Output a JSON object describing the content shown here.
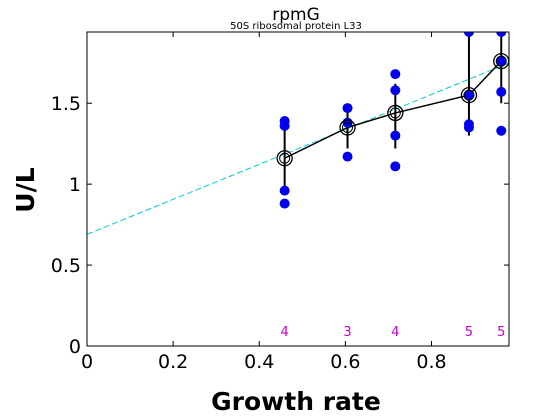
{
  "chart_data": {
    "type": "scatter",
    "title": "rpmG",
    "subtitle": "50S ribosomal protein L33",
    "xlabel": "Growth rate",
    "ylabel": "U/L",
    "xlim": [
      0,
      0.98
    ],
    "ylim": [
      0,
      1.94
    ],
    "xticks": [
      0,
      0.2,
      0.4,
      0.6,
      0.8
    ],
    "xtick_labels": [
      "0",
      "0.2",
      "0.4",
      "0.6",
      "0.8"
    ],
    "yticks": [
      0,
      0.5,
      1,
      1.5
    ],
    "ytick_labels": [
      "0",
      "0.5",
      "1",
      "1.5"
    ],
    "grid": false,
    "colors": {
      "points": "#0000ee",
      "mean": "#000000",
      "fit": "#00cccc",
      "counts": "#cc00cc"
    },
    "fit_line": {
      "intercept": 0.69,
      "slope": 1.08
    },
    "groups": [
      {
        "x": 0.459,
        "mean": 1.16,
        "err_low": 0.96,
        "err_high": 1.36,
        "points": [
          1.39,
          1.36,
          0.96,
          0.88
        ],
        "count": "4"
      },
      {
        "x": 0.605,
        "mean": 1.35,
        "err_low": 1.22,
        "err_high": 1.47,
        "points": [
          1.47,
          1.38,
          1.17
        ],
        "count": "3"
      },
      {
        "x": 0.716,
        "mean": 1.44,
        "err_low": 1.22,
        "err_high": 1.62,
        "points": [
          1.68,
          1.58,
          1.3,
          1.11
        ],
        "count": "4"
      },
      {
        "x": 0.887,
        "mean": 1.55,
        "err_low": 1.3,
        "err_high": 1.94,
        "points": [
          1.94,
          1.55,
          1.37,
          1.35
        ],
        "count": "5"
      },
      {
        "x": 0.962,
        "mean": 1.76,
        "err_low": 1.5,
        "err_high": 1.94,
        "points": [
          1.94,
          1.76,
          1.57,
          1.33
        ],
        "count": "5"
      }
    ]
  }
}
